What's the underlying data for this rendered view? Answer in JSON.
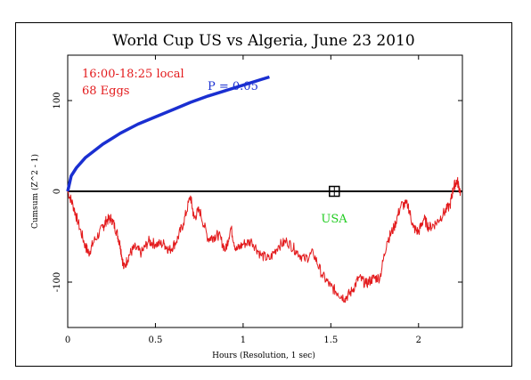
{
  "chart_data": {
    "type": "line",
    "title": "World Cup US vs Algeria, June 23 2010",
    "xlabel": "Hours (Resolution, 1 sec)",
    "ylabel": "Cumsum (Z^2 - 1)",
    "xlim": [
      0,
      2.25
    ],
    "ylim": [
      -150,
      150
    ],
    "x_ticks": [
      "0",
      "0.5",
      "1",
      "1.5",
      "2"
    ],
    "x_tick_values": [
      0,
      0.5,
      1,
      1.5,
      2
    ],
    "y_ticks": [
      "-100",
      "0",
      "100"
    ],
    "y_tick_values": [
      -100,
      0,
      100
    ],
    "grid": false,
    "annotations": [
      {
        "text": "16:00-18:25 local",
        "color": "#e31a1c"
      },
      {
        "text": "68 Eggs",
        "color": "#e31a1c"
      },
      {
        "text": "P = 0.05",
        "color": "#1a2fd1"
      },
      {
        "text": "USA",
        "color": "#22cc22"
      }
    ],
    "marker": {
      "label": "USA",
      "x": 1.52,
      "y": 0
    },
    "series": [
      {
        "color": "#1a2fd1",
        "x": [
          0,
          0.02,
          0.05,
          0.1,
          0.2,
          0.3,
          0.4,
          0.5,
          0.6,
          0.7,
          0.8,
          0.9,
          1.0,
          1.1,
          1.15
        ],
        "values": [
          0,
          17,
          26,
          37,
          52,
          64,
          74,
          82,
          90,
          98,
          105,
          111,
          117,
          123,
          126
        ]
      },
      {
        "color": "#e31a1c",
        "x": [
          0,
          0.03,
          0.06,
          0.1,
          0.12,
          0.15,
          0.2,
          0.22,
          0.25,
          0.28,
          0.3,
          0.32,
          0.35,
          0.38,
          0.42,
          0.46,
          0.5,
          0.55,
          0.58,
          0.62,
          0.66,
          0.7,
          0.72,
          0.75,
          0.8,
          0.83,
          0.86,
          0.9,
          0.93,
          0.96,
          1.0,
          1.05,
          1.1,
          1.15,
          1.2,
          1.25,
          1.3,
          1.35,
          1.4,
          1.45,
          1.5,
          1.54,
          1.58,
          1.62,
          1.66,
          1.7,
          1.74,
          1.78,
          1.82,
          1.86,
          1.9,
          1.94,
          1.97,
          2.0,
          2.03,
          2.06,
          2.1,
          2.14,
          2.18,
          2.2,
          2.22,
          2.24
        ],
        "values": [
          0,
          -15,
          -35,
          -60,
          -68,
          -55,
          -40,
          -32,
          -30,
          -45,
          -60,
          -85,
          -70,
          -62,
          -68,
          -55,
          -58,
          -58,
          -65,
          -55,
          -35,
          -5,
          -30,
          -20,
          -52,
          -50,
          -48,
          -65,
          -40,
          -65,
          -58,
          -55,
          -70,
          -75,
          -60,
          -55,
          -65,
          -75,
          -68,
          -92,
          -105,
          -112,
          -118,
          -110,
          -95,
          -102,
          -96,
          -95,
          -55,
          -40,
          -15,
          -15,
          -40,
          -45,
          -30,
          -40,
          -35,
          -25,
          -15,
          5,
          12,
          -2
        ]
      }
    ]
  }
}
